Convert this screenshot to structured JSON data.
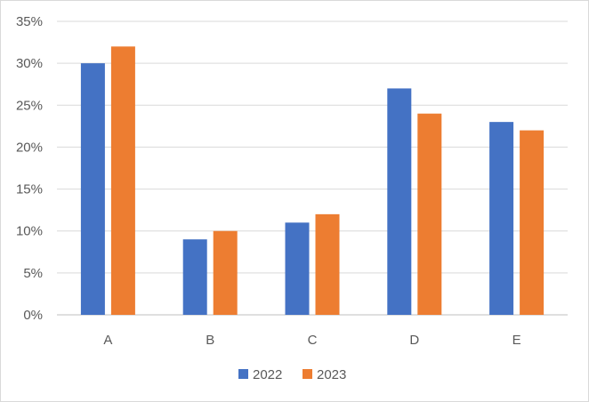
{
  "chart_data": {
    "type": "bar",
    "categories": [
      "A",
      "B",
      "C",
      "D",
      "E"
    ],
    "series": [
      {
        "name": "2022",
        "color": "#4472C4",
        "values": [
          30,
          9,
          11,
          27,
          23
        ]
      },
      {
        "name": "2023",
        "color": "#ED7D31",
        "values": [
          32,
          10,
          12,
          24,
          22
        ]
      }
    ],
    "ylim": [
      0,
      35
    ],
    "ytick_values": [
      0,
      5,
      10,
      15,
      20,
      25,
      30,
      35
    ],
    "ytick_labels": [
      "0%",
      "5%",
      "10%",
      "15%",
      "20%",
      "25%",
      "30%",
      "35%"
    ],
    "grid": true,
    "legend_position": "bottom",
    "title": "",
    "xlabel": "",
    "ylabel": ""
  }
}
